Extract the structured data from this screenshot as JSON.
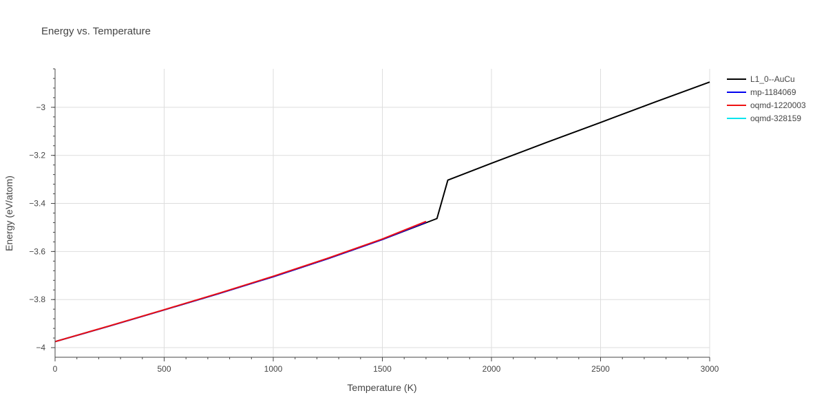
{
  "chart_data": {
    "type": "line",
    "title": "Energy vs. Temperature",
    "xlabel": "Temperature (K)",
    "ylabel": "Energy (eV/atom)",
    "xlim": [
      0,
      3000
    ],
    "ylim": [
      -4.04,
      -2.84
    ],
    "x_ticks": [
      0,
      500,
      1000,
      1500,
      2000,
      2500,
      3000
    ],
    "x_tick_labels": [
      "0",
      "500",
      "1000",
      "1500",
      "2000",
      "2500",
      "3000"
    ],
    "y_ticks": [
      -4,
      -3.8,
      -3.6,
      -3.4,
      -3.2,
      -3
    ],
    "y_tick_labels": [
      "−4",
      "−3.8",
      "−3.6",
      "−3.4",
      "−3.2",
      "−3"
    ],
    "grid": true,
    "legend_position": "right",
    "series": [
      {
        "name": "L1_0--AuCu",
        "color": "#000000",
        "x": [
          0,
          250,
          500,
          750,
          1000,
          1250,
          1500,
          1750,
          1800,
          2000,
          2250,
          2500,
          2750,
          3000
        ],
        "y": [
          -3.975,
          -3.91,
          -3.843,
          -3.775,
          -3.705,
          -3.63,
          -3.55,
          -3.463,
          -3.303,
          -3.233,
          -3.147,
          -3.063,
          -2.978,
          -2.895
        ]
      },
      {
        "name": "mp-1184069",
        "color": "#0000ee",
        "x": [
          0,
          250,
          500,
          750,
          1000,
          1250,
          1500,
          1700
        ],
        "y": [
          -3.975,
          -3.91,
          -3.843,
          -3.775,
          -3.705,
          -3.63,
          -3.55,
          -3.478
        ]
      },
      {
        "name": "oqmd-1220003",
        "color": "#ee1111",
        "x": [
          0,
          250,
          500,
          750,
          1000,
          1250,
          1500,
          1700
        ],
        "y": [
          -3.975,
          -3.909,
          -3.842,
          -3.774,
          -3.703,
          -3.628,
          -3.548,
          -3.475
        ]
      },
      {
        "name": "oqmd-328159",
        "color": "#00e5ee",
        "x": [],
        "y": []
      }
    ]
  }
}
